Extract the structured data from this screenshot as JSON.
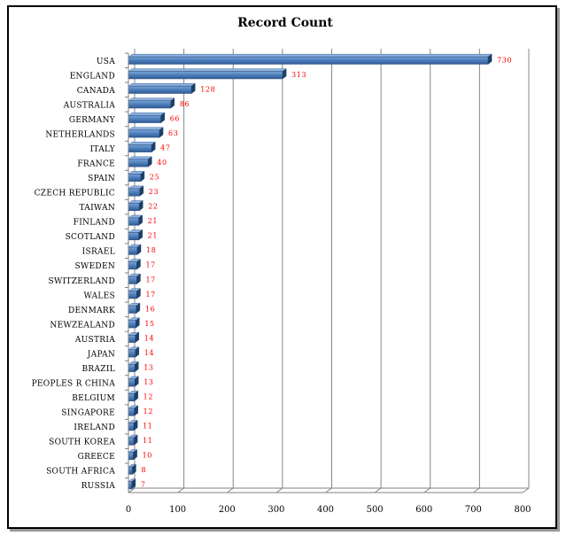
{
  "chart_data": {
    "type": "bar",
    "orientation": "horizontal",
    "title": "Record Count",
    "xlabel": "",
    "ylabel": "",
    "xlim": [
      0,
      800
    ],
    "ticks": [
      "0",
      "100",
      "200",
      "300",
      "400",
      "500",
      "600",
      "700",
      "800"
    ],
    "grid": true,
    "legend": "none",
    "categories": [
      "USA",
      "ENGLAND",
      "CANADA",
      "AUSTRALIA",
      "GERMANY",
      "NETHERLANDS",
      "ITALY",
      "FRANCE",
      "SPAIN",
      "CZECH REPUBLIC",
      "TAIWAN",
      "FINLAND",
      "SCOTLAND",
      "ISRAEL",
      "SWEDEN",
      "SWITZERLAND",
      "WALES",
      "DENMARK",
      "NEWZEALAND",
      "AUSTRIA",
      "JAPAN",
      "BRAZIL",
      "PEOPLES R CHINA",
      "BELGIUM",
      "SINGAPORE",
      "IRELAND",
      "SOUTH KOREA",
      "GREECE",
      "SOUTH AFRICA",
      "RUSSIA"
    ],
    "values": [
      730,
      313,
      128,
      86,
      66,
      63,
      47,
      40,
      25,
      23,
      22,
      21,
      21,
      18,
      17,
      17,
      17,
      16,
      15,
      14,
      14,
      13,
      13,
      12,
      12,
      11,
      11,
      10,
      8,
      7
    ],
    "bar_color": "#4f81bd",
    "label_color": "#ff0000"
  }
}
